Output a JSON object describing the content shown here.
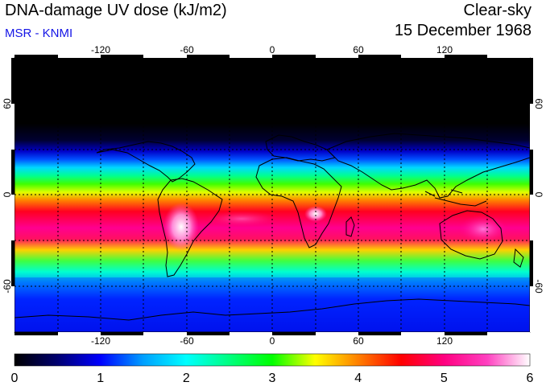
{
  "header": {
    "title": "DNA-damage UV dose (kJ/m2)",
    "subtitle": "MSR - KNMI",
    "condition": "Clear-sky",
    "date": "15 December 1968"
  },
  "map": {
    "projection": "equirectangular",
    "lon_range": [
      -180,
      180
    ],
    "lat_range": [
      -90,
      90
    ],
    "lon_ticks": [
      -120,
      -60,
      0,
      60,
      120
    ],
    "lon_tick_labels": [
      "-120",
      "-60",
      "0",
      "60",
      "120"
    ],
    "lat_ticks": [
      60,
      0,
      -60
    ],
    "lat_tick_labels": [
      "60",
      "0",
      "-60"
    ],
    "gridlines": "dashed",
    "background_polar_night": "#000000"
  },
  "colorbar": {
    "range": [
      0,
      6
    ],
    "tick_labels": [
      "0",
      "1",
      "2",
      "3",
      "4",
      "5",
      "6"
    ],
    "stops": [
      "#000000",
      "#000070",
      "#0000ff",
      "#00a0ff",
      "#00ffff",
      "#00ff80",
      "#00ff00",
      "#ffff00",
      "#ff8000",
      "#ff0000",
      "#ff0080",
      "#ff40c0",
      "#ffffff"
    ]
  }
}
